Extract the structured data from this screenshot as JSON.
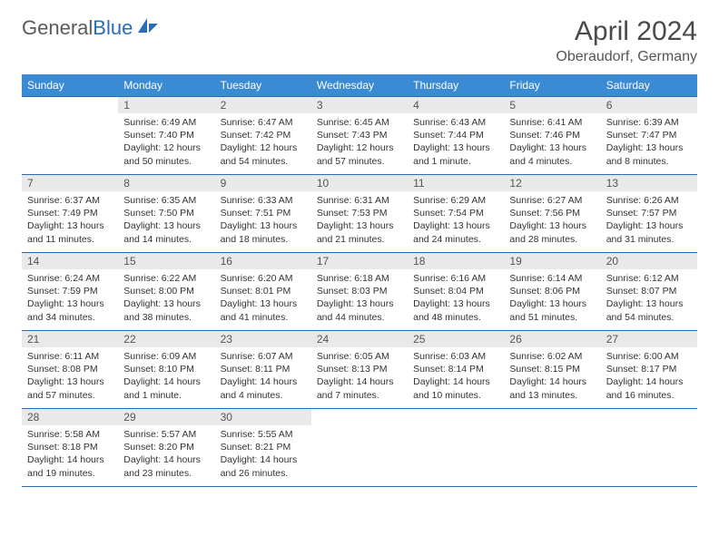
{
  "brand": {
    "part1": "General",
    "part2": "Blue"
  },
  "title": "April 2024",
  "location": "Oberaudorf, Germany",
  "colors": {
    "header_bg": "#3b8bd4",
    "border": "#2a6db5",
    "daynum_bg": "#e9e9e9"
  },
  "weekdays": [
    "Sunday",
    "Monday",
    "Tuesday",
    "Wednesday",
    "Thursday",
    "Friday",
    "Saturday"
  ],
  "weeks": [
    [
      null,
      {
        "n": "1",
        "sr": "Sunrise: 6:49 AM",
        "ss": "Sunset: 7:40 PM",
        "dl": "Daylight: 12 hours and 50 minutes."
      },
      {
        "n": "2",
        "sr": "Sunrise: 6:47 AM",
        "ss": "Sunset: 7:42 PM",
        "dl": "Daylight: 12 hours and 54 minutes."
      },
      {
        "n": "3",
        "sr": "Sunrise: 6:45 AM",
        "ss": "Sunset: 7:43 PM",
        "dl": "Daylight: 12 hours and 57 minutes."
      },
      {
        "n": "4",
        "sr": "Sunrise: 6:43 AM",
        "ss": "Sunset: 7:44 PM",
        "dl": "Daylight: 13 hours and 1 minute."
      },
      {
        "n": "5",
        "sr": "Sunrise: 6:41 AM",
        "ss": "Sunset: 7:46 PM",
        "dl": "Daylight: 13 hours and 4 minutes."
      },
      {
        "n": "6",
        "sr": "Sunrise: 6:39 AM",
        "ss": "Sunset: 7:47 PM",
        "dl": "Daylight: 13 hours and 8 minutes."
      }
    ],
    [
      {
        "n": "7",
        "sr": "Sunrise: 6:37 AM",
        "ss": "Sunset: 7:49 PM",
        "dl": "Daylight: 13 hours and 11 minutes."
      },
      {
        "n": "8",
        "sr": "Sunrise: 6:35 AM",
        "ss": "Sunset: 7:50 PM",
        "dl": "Daylight: 13 hours and 14 minutes."
      },
      {
        "n": "9",
        "sr": "Sunrise: 6:33 AM",
        "ss": "Sunset: 7:51 PM",
        "dl": "Daylight: 13 hours and 18 minutes."
      },
      {
        "n": "10",
        "sr": "Sunrise: 6:31 AM",
        "ss": "Sunset: 7:53 PM",
        "dl": "Daylight: 13 hours and 21 minutes."
      },
      {
        "n": "11",
        "sr": "Sunrise: 6:29 AM",
        "ss": "Sunset: 7:54 PM",
        "dl": "Daylight: 13 hours and 24 minutes."
      },
      {
        "n": "12",
        "sr": "Sunrise: 6:27 AM",
        "ss": "Sunset: 7:56 PM",
        "dl": "Daylight: 13 hours and 28 minutes."
      },
      {
        "n": "13",
        "sr": "Sunrise: 6:26 AM",
        "ss": "Sunset: 7:57 PM",
        "dl": "Daylight: 13 hours and 31 minutes."
      }
    ],
    [
      {
        "n": "14",
        "sr": "Sunrise: 6:24 AM",
        "ss": "Sunset: 7:59 PM",
        "dl": "Daylight: 13 hours and 34 minutes."
      },
      {
        "n": "15",
        "sr": "Sunrise: 6:22 AM",
        "ss": "Sunset: 8:00 PM",
        "dl": "Daylight: 13 hours and 38 minutes."
      },
      {
        "n": "16",
        "sr": "Sunrise: 6:20 AM",
        "ss": "Sunset: 8:01 PM",
        "dl": "Daylight: 13 hours and 41 minutes."
      },
      {
        "n": "17",
        "sr": "Sunrise: 6:18 AM",
        "ss": "Sunset: 8:03 PM",
        "dl": "Daylight: 13 hours and 44 minutes."
      },
      {
        "n": "18",
        "sr": "Sunrise: 6:16 AM",
        "ss": "Sunset: 8:04 PM",
        "dl": "Daylight: 13 hours and 48 minutes."
      },
      {
        "n": "19",
        "sr": "Sunrise: 6:14 AM",
        "ss": "Sunset: 8:06 PM",
        "dl": "Daylight: 13 hours and 51 minutes."
      },
      {
        "n": "20",
        "sr": "Sunrise: 6:12 AM",
        "ss": "Sunset: 8:07 PM",
        "dl": "Daylight: 13 hours and 54 minutes."
      }
    ],
    [
      {
        "n": "21",
        "sr": "Sunrise: 6:11 AM",
        "ss": "Sunset: 8:08 PM",
        "dl": "Daylight: 13 hours and 57 minutes."
      },
      {
        "n": "22",
        "sr": "Sunrise: 6:09 AM",
        "ss": "Sunset: 8:10 PM",
        "dl": "Daylight: 14 hours and 1 minute."
      },
      {
        "n": "23",
        "sr": "Sunrise: 6:07 AM",
        "ss": "Sunset: 8:11 PM",
        "dl": "Daylight: 14 hours and 4 minutes."
      },
      {
        "n": "24",
        "sr": "Sunrise: 6:05 AM",
        "ss": "Sunset: 8:13 PM",
        "dl": "Daylight: 14 hours and 7 minutes."
      },
      {
        "n": "25",
        "sr": "Sunrise: 6:03 AM",
        "ss": "Sunset: 8:14 PM",
        "dl": "Daylight: 14 hours and 10 minutes."
      },
      {
        "n": "26",
        "sr": "Sunrise: 6:02 AM",
        "ss": "Sunset: 8:15 PM",
        "dl": "Daylight: 14 hours and 13 minutes."
      },
      {
        "n": "27",
        "sr": "Sunrise: 6:00 AM",
        "ss": "Sunset: 8:17 PM",
        "dl": "Daylight: 14 hours and 16 minutes."
      }
    ],
    [
      {
        "n": "28",
        "sr": "Sunrise: 5:58 AM",
        "ss": "Sunset: 8:18 PM",
        "dl": "Daylight: 14 hours and 19 minutes."
      },
      {
        "n": "29",
        "sr": "Sunrise: 5:57 AM",
        "ss": "Sunset: 8:20 PM",
        "dl": "Daylight: 14 hours and 23 minutes."
      },
      {
        "n": "30",
        "sr": "Sunrise: 5:55 AM",
        "ss": "Sunset: 8:21 PM",
        "dl": "Daylight: 14 hours and 26 minutes."
      },
      null,
      null,
      null,
      null
    ]
  ]
}
